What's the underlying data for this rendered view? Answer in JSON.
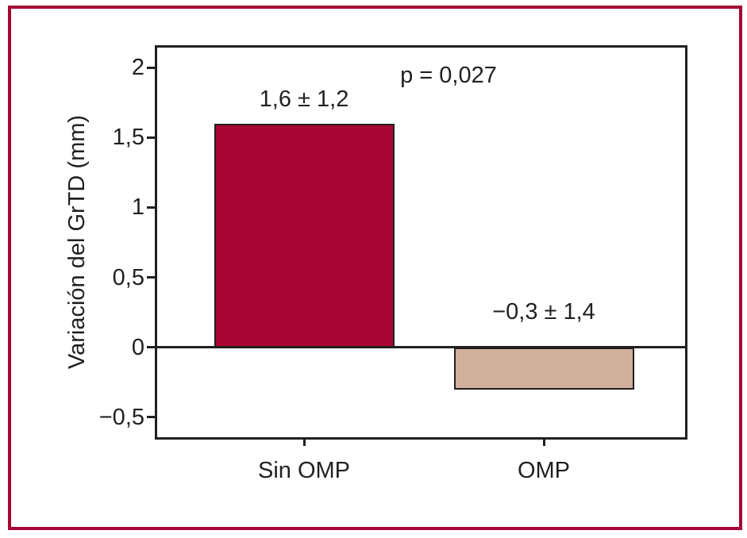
{
  "figure": {
    "border_color": "#a40534",
    "background": "#ffffff",
    "text_color": "#231f20"
  },
  "chart_data": {
    "type": "bar",
    "title": "",
    "categories": [
      "Sin OMP",
      "OMP"
    ],
    "values": [
      1.6,
      -0.3
    ],
    "errors": [
      1.2,
      1.4
    ],
    "bar_labels": [
      "1,6 ± 1,2",
      "−0,3 ± 1,4"
    ],
    "bar_colors": [
      "#a90534",
      "#d2b09e"
    ],
    "bar_border_color": "#231f20",
    "annotation": "p = 0,027",
    "ylabel": "Variación del GrTD (mm)",
    "xlabel": "",
    "yticks": [
      {
        "value": 2,
        "label": "2"
      },
      {
        "value": 1.5,
        "label": "1,5"
      },
      {
        "value": 1,
        "label": "1"
      },
      {
        "value": 0.5,
        "label": "0,5"
      },
      {
        "value": 0,
        "label": "0"
      },
      {
        "value": -0.5,
        "label": "−0,5"
      }
    ],
    "ylim": [
      -0.66,
      2.16
    ],
    "grid": false,
    "legend": "none",
    "axis_color": "#231f20"
  }
}
